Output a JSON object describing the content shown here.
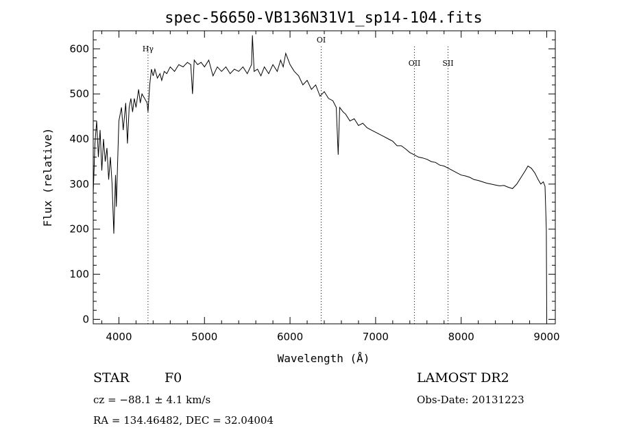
{
  "chart_data": {
    "type": "line",
    "title": "spec-56650-VB136N31V1_sp14-104.fits",
    "xlabel": "Wavelength (Å)",
    "ylabel": "Flux (relative)",
    "xlim": [
      3700,
      9100
    ],
    "ylim": [
      -10,
      640
    ],
    "xticks": [
      4000,
      5000,
      6000,
      7000,
      8000,
      9000
    ],
    "yticks": [
      0,
      100,
      200,
      300,
      400,
      500,
      600
    ],
    "xtick_labels": [
      "4000",
      "5000",
      "6000",
      "7000",
      "8000",
      "9000"
    ],
    "ytick_labels": [
      "0",
      "100",
      "200",
      "300",
      "400",
      "500",
      "600"
    ],
    "grid": false,
    "series": [
      {
        "values": [
          [
            3700,
            280
          ],
          [
            3720,
            390
          ],
          [
            3740,
            440
          ],
          [
            3760,
            360
          ],
          [
            3780,
            420
          ],
          [
            3800,
            330
          ],
          [
            3820,
            400
          ],
          [
            3840,
            350
          ],
          [
            3860,
            380
          ],
          [
            3880,
            310
          ],
          [
            3900,
            360
          ],
          [
            3920,
            300
          ],
          [
            3940,
            190
          ],
          [
            3960,
            320
          ],
          [
            3970,
            250
          ],
          [
            3990,
            380
          ],
          [
            4000,
            440
          ],
          [
            4030,
            470
          ],
          [
            4050,
            420
          ],
          [
            4080,
            480
          ],
          [
            4100,
            390
          ],
          [
            4120,
            470
          ],
          [
            4140,
            490
          ],
          [
            4160,
            460
          ],
          [
            4180,
            490
          ],
          [
            4200,
            470
          ],
          [
            4230,
            510
          ],
          [
            4250,
            480
          ],
          [
            4270,
            500
          ],
          [
            4300,
            490
          ],
          [
            4330,
            480
          ],
          [
            4340,
            460
          ],
          [
            4360,
            520
          ],
          [
            4380,
            555
          ],
          [
            4400,
            540
          ],
          [
            4420,
            555
          ],
          [
            4450,
            535
          ],
          [
            4480,
            545
          ],
          [
            4500,
            530
          ],
          [
            4530,
            550
          ],
          [
            4560,
            545
          ],
          [
            4600,
            560
          ],
          [
            4650,
            550
          ],
          [
            4700,
            565
          ],
          [
            4750,
            560
          ],
          [
            4800,
            570
          ],
          [
            4840,
            565
          ],
          [
            4860,
            500
          ],
          [
            4880,
            575
          ],
          [
            4920,
            565
          ],
          [
            4960,
            570
          ],
          [
            5000,
            560
          ],
          [
            5050,
            575
          ],
          [
            5100,
            540
          ],
          [
            5150,
            560
          ],
          [
            5200,
            550
          ],
          [
            5250,
            560
          ],
          [
            5300,
            545
          ],
          [
            5350,
            555
          ],
          [
            5400,
            550
          ],
          [
            5450,
            560
          ],
          [
            5500,
            545
          ],
          [
            5550,
            565
          ],
          [
            5560,
            630
          ],
          [
            5580,
            550
          ],
          [
            5620,
            555
          ],
          [
            5660,
            540
          ],
          [
            5700,
            560
          ],
          [
            5750,
            545
          ],
          [
            5800,
            565
          ],
          [
            5850,
            550
          ],
          [
            5890,
            575
          ],
          [
            5920,
            560
          ],
          [
            5950,
            590
          ],
          [
            5980,
            575
          ],
          [
            6000,
            565
          ],
          [
            6050,
            550
          ],
          [
            6100,
            540
          ],
          [
            6150,
            520
          ],
          [
            6200,
            530
          ],
          [
            6250,
            510
          ],
          [
            6300,
            520
          ],
          [
            6350,
            495
          ],
          [
            6400,
            505
          ],
          [
            6450,
            490
          ],
          [
            6500,
            485
          ],
          [
            6540,
            470
          ],
          [
            6563,
            365
          ],
          [
            6580,
            470
          ],
          [
            6620,
            460
          ],
          [
            6650,
            455
          ],
          [
            6700,
            440
          ],
          [
            6750,
            445
          ],
          [
            6800,
            430
          ],
          [
            6850,
            435
          ],
          [
            6900,
            425
          ],
          [
            6950,
            420
          ],
          [
            7000,
            415
          ],
          [
            7050,
            410
          ],
          [
            7100,
            405
          ],
          [
            7150,
            400
          ],
          [
            7200,
            395
          ],
          [
            7250,
            385
          ],
          [
            7300,
            385
          ],
          [
            7350,
            378
          ],
          [
            7400,
            370
          ],
          [
            7450,
            365
          ],
          [
            7500,
            360
          ],
          [
            7550,
            358
          ],
          [
            7600,
            355
          ],
          [
            7650,
            350
          ],
          [
            7700,
            348
          ],
          [
            7750,
            342
          ],
          [
            7800,
            340
          ],
          [
            7850,
            335
          ],
          [
            7900,
            330
          ],
          [
            7950,
            325
          ],
          [
            8000,
            320
          ],
          [
            8050,
            318
          ],
          [
            8100,
            315
          ],
          [
            8150,
            310
          ],
          [
            8200,
            308
          ],
          [
            8250,
            305
          ],
          [
            8300,
            302
          ],
          [
            8350,
            300
          ],
          [
            8400,
            298
          ],
          [
            8450,
            296
          ],
          [
            8500,
            297
          ],
          [
            8550,
            293
          ],
          [
            8600,
            290
          ],
          [
            8650,
            300
          ],
          [
            8700,
            315
          ],
          [
            8750,
            330
          ],
          [
            8780,
            340
          ],
          [
            8820,
            335
          ],
          [
            8860,
            325
          ],
          [
            8900,
            310
          ],
          [
            8930,
            300
          ],
          [
            8960,
            305
          ],
          [
            8980,
            295
          ],
          [
            8995,
            200
          ],
          [
            9000,
            0
          ]
        ]
      }
    ],
    "annotations": [
      {
        "text": "Hγ",
        "x": 4340
      },
      {
        "text": "OI",
        "x": 6364
      },
      {
        "text": "OII",
        "x": 7454
      },
      {
        "text": "SII",
        "x": 7846
      }
    ]
  },
  "info": {
    "star_label": "STAR",
    "spectral_type": "F0",
    "survey": "LAMOST DR2",
    "cz_line": "cz = −88.1 ± 4.1 km/s",
    "obs_date_line": "Obs-Date: 20131223",
    "coords_line": "RA = 134.46482, DEC =  32.04004"
  }
}
